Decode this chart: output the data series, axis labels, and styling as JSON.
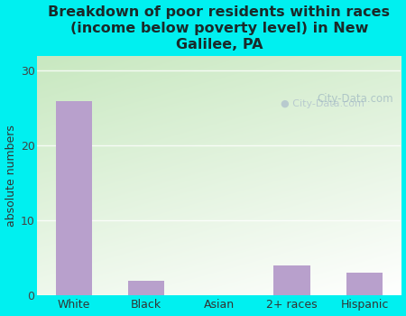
{
  "categories": [
    "White",
    "Black",
    "Asian",
    "2+ races",
    "Hispanic"
  ],
  "values": [
    26,
    2,
    0,
    4,
    3
  ],
  "bar_color": "#b8a0cc",
  "title": "Breakdown of poor residents within races\n(income below poverty level) in New\nGalilee, PA",
  "ylabel": "absolute numbers",
  "ylim": [
    0,
    32
  ],
  "yticks": [
    0,
    10,
    20,
    30
  ],
  "background_color": "#00f0f0",
  "grad_top_left": "#e8f5e8",
  "grad_bottom_right": "#f8fffc",
  "grid_color": "#ddeecc",
  "watermark": "City-Data.com",
  "title_fontsize": 11.5,
  "ylabel_fontsize": 9,
  "tick_fontsize": 9,
  "title_color": "#1a2a2a"
}
